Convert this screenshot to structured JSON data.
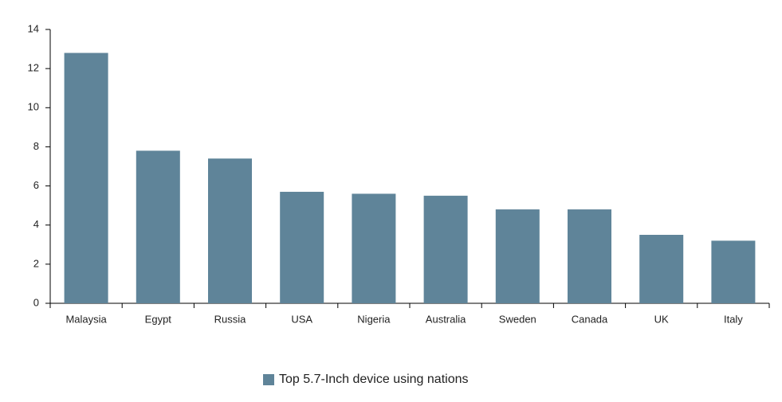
{
  "chart_data": {
    "type": "bar",
    "categories": [
      "Malaysia",
      "Egypt",
      "Russia",
      "USA",
      "Nigeria",
      "Australia",
      "Sweden",
      "Canada",
      "UK",
      "Italy"
    ],
    "series": [
      {
        "name": "Top 5.7-Inch device using nations",
        "color": "#5f8499",
        "values": [
          12.8,
          7.8,
          7.4,
          5.7,
          5.6,
          5.5,
          4.8,
          4.8,
          3.5,
          3.2
        ]
      }
    ],
    "ylim": [
      0,
      14
    ],
    "yticks": [
      0,
      2,
      4,
      6,
      8,
      10,
      12,
      14
    ],
    "grid": false,
    "legend": "bottom"
  }
}
